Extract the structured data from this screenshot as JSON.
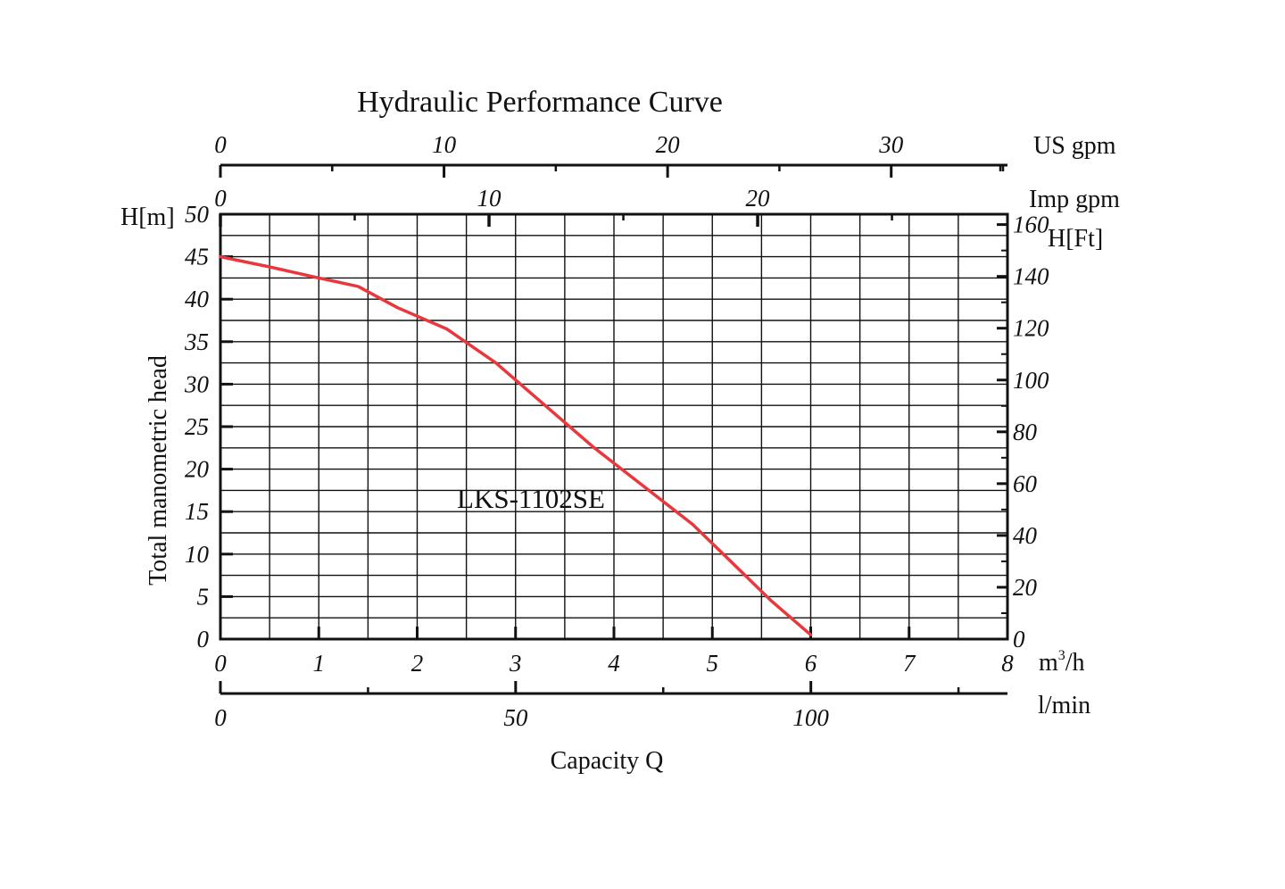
{
  "chart_data": {
    "type": "line",
    "title": "Hydraulic Performance Curve",
    "xlabel": "Capacity Q",
    "ylabel": "Total manometric head",
    "annotation": "LKS-1102SE",
    "grid": true,
    "legend": "none",
    "x_unit": "m³/h",
    "y_unit": "H[m]",
    "xlim": [
      0,
      8
    ],
    "ylim": [
      0,
      50
    ],
    "x_ticks": [
      "0",
      "1",
      "2",
      "3",
      "4",
      "5",
      "6",
      "7",
      "8"
    ],
    "y_ticks": [
      "0",
      "5",
      "10",
      "15",
      "20",
      "25",
      "30",
      "35",
      "40",
      "45",
      "50"
    ],
    "secondary_axes": {
      "top_outer": {
        "unit": "US gpm",
        "ticks": [
          "0",
          "10",
          "20",
          "30"
        ],
        "range": [
          0,
          35.2
        ]
      },
      "top_inner": {
        "unit": "Imp gpm",
        "ticks": [
          "0",
          "10",
          "20"
        ],
        "range": [
          0,
          29.3
        ]
      },
      "right": {
        "unit": "H[Ft]",
        "ticks": [
          "0",
          "20",
          "40",
          "60",
          "80",
          "100",
          "120",
          "140",
          "160"
        ],
        "range": [
          0,
          164
        ]
      },
      "bottom": {
        "unit": "l/min",
        "ticks": [
          "0",
          "50",
          "100"
        ],
        "range": [
          0,
          133.3
        ]
      }
    },
    "series": [
      {
        "color": "#e8383d",
        "x": [
          0,
          0.5,
          1.0,
          1.4,
          1.8,
          2.3,
          2.8,
          3.3,
          3.8,
          4.3,
          4.8,
          5.2,
          5.6,
          6.0
        ],
        "y": [
          45.0,
          43.8,
          42.5,
          41.5,
          39.0,
          36.5,
          32.5,
          27.5,
          22.5,
          18.0,
          13.5,
          9.0,
          4.5,
          0.5
        ]
      }
    ]
  }
}
